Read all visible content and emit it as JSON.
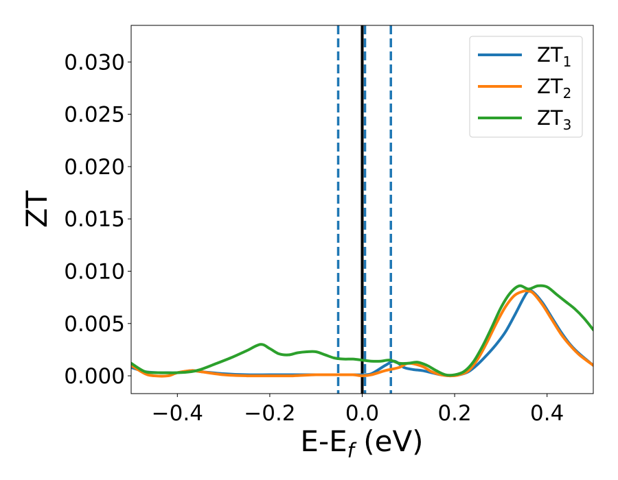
{
  "chart_data": {
    "type": "line",
    "xlabel": {
      "main": "E-E",
      "sub": "f",
      "tail": " (eV)"
    },
    "ylabel": "ZT",
    "xlim": [
      -0.5,
      0.5
    ],
    "ylim": [
      -0.0017,
      0.0335
    ],
    "x_ticks": [
      -0.4,
      -0.2,
      0.0,
      0.2,
      0.4
    ],
    "x_tick_labels": [
      "−0.4",
      "−0.2",
      "0.0",
      "0.2",
      "0.4"
    ],
    "y_ticks": [
      0.0,
      0.005,
      0.01,
      0.015,
      0.02,
      0.025,
      0.03
    ],
    "y_tick_labels": [
      "0.000",
      "0.005",
      "0.010",
      "0.015",
      "0.020",
      "0.025",
      "0.030"
    ],
    "grid": false,
    "legend_position": "top-right",
    "vertical_lines": [
      {
        "x": -0.052,
        "color": "#1f77b4",
        "style": "dashed"
      },
      {
        "x": 0.0,
        "color": "#000000",
        "style": "solid"
      },
      {
        "x": 0.006,
        "color": "#1f77b4",
        "style": "dashed"
      },
      {
        "x": 0.062,
        "color": "#1f77b4",
        "style": "dashed"
      }
    ],
    "series": [
      {
        "name": "ZT",
        "sub": "1",
        "color": "#1f77b4",
        "x": [
          -0.5,
          -0.47,
          -0.44,
          -0.42,
          -0.4,
          -0.37,
          -0.35,
          -0.3,
          -0.25,
          -0.2,
          -0.15,
          -0.1,
          -0.05,
          -0.02,
          0.0,
          0.02,
          0.05,
          0.07,
          0.09,
          0.11,
          0.13,
          0.15,
          0.17,
          0.19,
          0.21,
          0.23,
          0.25,
          0.27,
          0.29,
          0.31,
          0.33,
          0.35,
          0.36,
          0.37,
          0.39,
          0.41,
          0.43,
          0.45,
          0.47,
          0.5
        ],
        "y": [
          0.0008,
          0.0004,
          0.0003,
          0.0003,
          0.0003,
          0.0005,
          0.0004,
          0.0002,
          0.0001,
          0.0001,
          0.0001,
          0.0001,
          0.0001,
          0.0001,
          0.0001,
          0.0002,
          0.001,
          0.0014,
          0.0008,
          0.0006,
          0.0005,
          0.0003,
          0.0001,
          0.0,
          0.0001,
          0.0004,
          0.0011,
          0.002,
          0.003,
          0.0042,
          0.0058,
          0.0075,
          0.0081,
          0.008,
          0.007,
          0.0056,
          0.0042,
          0.003,
          0.0021,
          0.001
        ]
      },
      {
        "name": "ZT",
        "sub": "2",
        "color": "#ff7f0e",
        "x": [
          -0.5,
          -0.47,
          -0.45,
          -0.42,
          -0.4,
          -0.37,
          -0.35,
          -0.3,
          -0.25,
          -0.2,
          -0.15,
          -0.1,
          -0.05,
          -0.02,
          0.0,
          0.02,
          0.05,
          0.08,
          0.1,
          0.13,
          0.15,
          0.17,
          0.19,
          0.21,
          0.23,
          0.25,
          0.27,
          0.29,
          0.31,
          0.33,
          0.35,
          0.36,
          0.37,
          0.39,
          0.41,
          0.43,
          0.45,
          0.47,
          0.5
        ],
        "y": [
          0.001,
          0.0002,
          0.0,
          0.0,
          0.0003,
          0.0005,
          0.0004,
          0.0001,
          0.0,
          0.0,
          0.0,
          0.0001,
          0.0001,
          0.0001,
          0.0,
          0.0001,
          0.0005,
          0.0008,
          0.0012,
          0.0009,
          0.0004,
          0.0001,
          0.0,
          0.0001,
          0.0005,
          0.0016,
          0.0032,
          0.005,
          0.0066,
          0.0077,
          0.0081,
          0.0081,
          0.0079,
          0.0068,
          0.0054,
          0.004,
          0.0029,
          0.002,
          0.001
        ]
      },
      {
        "name": "ZT",
        "sub": "3",
        "color": "#2ca02c",
        "x": [
          -0.5,
          -0.47,
          -0.44,
          -0.4,
          -0.37,
          -0.35,
          -0.32,
          -0.28,
          -0.25,
          -0.22,
          -0.2,
          -0.18,
          -0.16,
          -0.14,
          -0.12,
          -0.1,
          -0.08,
          -0.06,
          -0.04,
          -0.02,
          0.0,
          0.02,
          0.04,
          0.06,
          0.08,
          0.1,
          0.12,
          0.14,
          0.16,
          0.18,
          0.2,
          0.22,
          0.24,
          0.26,
          0.28,
          0.3,
          0.32,
          0.34,
          0.36,
          0.38,
          0.4,
          0.42,
          0.44,
          0.46,
          0.48,
          0.5
        ],
        "y": [
          0.0012,
          0.0004,
          0.0003,
          0.0003,
          0.0004,
          0.0006,
          0.0011,
          0.0018,
          0.0024,
          0.003,
          0.0026,
          0.0021,
          0.002,
          0.0022,
          0.0023,
          0.0023,
          0.002,
          0.0017,
          0.0016,
          0.0016,
          0.0015,
          0.0014,
          0.0014,
          0.0015,
          0.0012,
          0.0012,
          0.0013,
          0.001,
          0.0005,
          0.0001,
          0.0001,
          0.0004,
          0.0013,
          0.0028,
          0.0046,
          0.0065,
          0.0079,
          0.0086,
          0.0083,
          0.0086,
          0.0085,
          0.0078,
          0.0071,
          0.0064,
          0.0055,
          0.0044
        ]
      }
    ]
  }
}
